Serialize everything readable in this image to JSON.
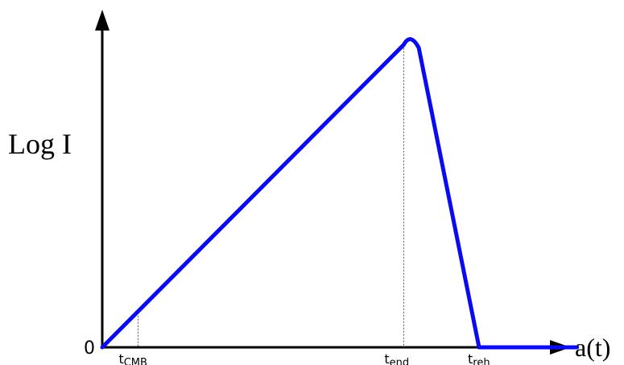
{
  "chart_data": {
    "type": "line",
    "ylabel": "Log I",
    "xlabel": "a(t)",
    "origin_label": "0",
    "series": [
      {
        "x": [
          0,
          0.095,
          0.8,
          0.818,
          0.84,
          1.0,
          1.26
        ],
        "y": [
          0,
          0.113,
          0.98,
          1.0,
          0.97,
          0,
          0
        ]
      }
    ],
    "markers": [
      {
        "x": 0.095,
        "y": 0.113,
        "base": "t",
        "sub": "CMB"
      },
      {
        "x": 0.8,
        "y": 0.98,
        "base": "t",
        "sub": "end"
      },
      {
        "x": 1.0,
        "y": 0,
        "base": "t",
        "sub": "reh"
      }
    ],
    "line_color": "#0b0bf0",
    "grid": false
  }
}
